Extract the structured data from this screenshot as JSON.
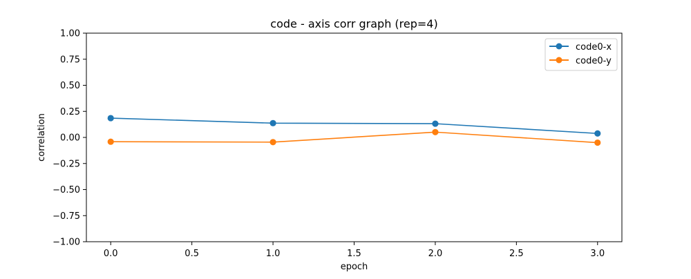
{
  "chart_data": {
    "type": "line",
    "title": "code - axis corr graph (rep=4)",
    "xlabel": "epoch",
    "ylabel": "correlation",
    "x": [
      0,
      1,
      2,
      3
    ],
    "xlim": [
      -0.15,
      3.15
    ],
    "ylim": [
      -1.0,
      1.0
    ],
    "x_ticks": [
      0.0,
      0.5,
      1.0,
      1.5,
      2.0,
      2.5,
      3.0
    ],
    "x_tick_labels": [
      "0.0",
      "0.5",
      "1.0",
      "1.5",
      "2.0",
      "2.5",
      "3.0"
    ],
    "y_ticks": [
      1.0,
      0.75,
      0.5,
      0.25,
      0.0,
      -0.25,
      -0.5,
      -0.75,
      -1.0
    ],
    "y_tick_labels": [
      "1.00",
      "0.75",
      "0.50",
      "0.25",
      "0.00",
      "−0.25",
      "−0.50",
      "−0.75",
      "−1.00"
    ],
    "grid": false,
    "legend_position": "top-right",
    "series": [
      {
        "name": "code0-x",
        "color": "#1f77b4",
        "marker": "circle",
        "values": [
          0.185,
          0.137,
          0.132,
          0.038
        ]
      },
      {
        "name": "code0-y",
        "color": "#ff7f0e",
        "marker": "circle",
        "values": [
          -0.041,
          -0.045,
          0.051,
          -0.05
        ]
      }
    ]
  }
}
